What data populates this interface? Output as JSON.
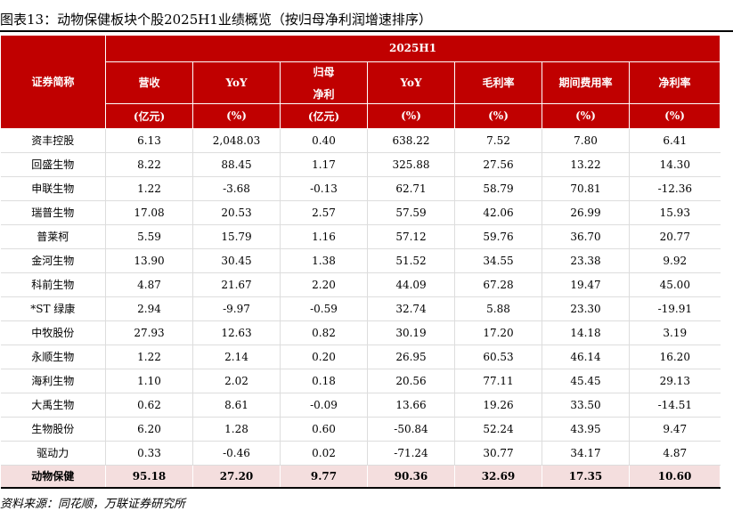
{
  "title": "图表13：动物保健板块个股2025H1业绩概览（按归母净利润增速排序）",
  "header": {
    "name_col": "证券简称",
    "period": "2025H1",
    "columns": [
      {
        "label": "营收",
        "label2": "",
        "unit": "(亿元)"
      },
      {
        "label": "YoY",
        "label2": "",
        "unit": "(%)"
      },
      {
        "label": "归母",
        "label2": "净利",
        "unit": "(亿元)"
      },
      {
        "label": "YoY",
        "label2": "",
        "unit": "(%)"
      },
      {
        "label": "毛利率",
        "label2": "",
        "unit": "(%)"
      },
      {
        "label": "期间费用率",
        "label2": "",
        "unit": "(%)"
      },
      {
        "label": "净利率",
        "label2": "",
        "unit": "(%)"
      }
    ]
  },
  "rows": [
    {
      "name": "资丰控股",
      "v": [
        "6.13",
        "2,048.03",
        "0.40",
        "638.22",
        "7.52",
        "7.80",
        "6.41"
      ]
    },
    {
      "name": "回盛生物",
      "v": [
        "8.22",
        "88.45",
        "1.17",
        "325.88",
        "27.56",
        "13.22",
        "14.30"
      ]
    },
    {
      "name": "申联生物",
      "v": [
        "1.22",
        "-3.68",
        "-0.13",
        "62.71",
        "58.79",
        "70.81",
        "-12.36"
      ]
    },
    {
      "name": "瑞普生物",
      "v": [
        "17.08",
        "20.53",
        "2.57",
        "57.59",
        "42.06",
        "26.99",
        "15.93"
      ]
    },
    {
      "name": "普莱柯",
      "v": [
        "5.59",
        "15.79",
        "1.16",
        "57.12",
        "59.76",
        "36.70",
        "20.77"
      ]
    },
    {
      "name": "金河生物",
      "v": [
        "13.90",
        "30.45",
        "1.38",
        "51.52",
        "34.55",
        "23.38",
        "9.92"
      ]
    },
    {
      "name": "科前生物",
      "v": [
        "4.87",
        "21.67",
        "2.20",
        "44.09",
        "67.28",
        "19.47",
        "45.00"
      ]
    },
    {
      "name": "*ST 绿康",
      "v": [
        "2.94",
        "-9.97",
        "-0.59",
        "32.74",
        "5.88",
        "23.30",
        "-19.91"
      ]
    },
    {
      "name": "中牧股份",
      "v": [
        "27.93",
        "12.63",
        "0.82",
        "30.19",
        "17.20",
        "14.18",
        "3.19"
      ]
    },
    {
      "name": "永顺生物",
      "v": [
        "1.22",
        "2.14",
        "0.20",
        "26.95",
        "60.53",
        "46.14",
        "16.20"
      ]
    },
    {
      "name": "海利生物",
      "v": [
        "1.10",
        "2.02",
        "0.18",
        "20.56",
        "77.11",
        "45.45",
        "29.13"
      ]
    },
    {
      "name": "大禹生物",
      "v": [
        "0.62",
        "8.61",
        "-0.09",
        "13.66",
        "19.26",
        "33.50",
        "-14.51"
      ]
    },
    {
      "name": "生物股份",
      "v": [
        "6.20",
        "1.28",
        "0.60",
        "-50.84",
        "52.24",
        "43.95",
        "9.47"
      ]
    },
    {
      "name": "驱动力",
      "v": [
        "0.33",
        "-0.46",
        "0.02",
        "-71.24",
        "30.77",
        "34.17",
        "4.87"
      ]
    }
  ],
  "total": {
    "name": "动物保健",
    "v": [
      "95.18",
      "27.20",
      "9.77",
      "90.36",
      "32.69",
      "17.35",
      "10.60"
    ]
  },
  "source": "资料来源：同花顺，万联证券研究所",
  "colors": {
    "header_bg": "#c00000",
    "total_bg": "#f4dede"
  }
}
